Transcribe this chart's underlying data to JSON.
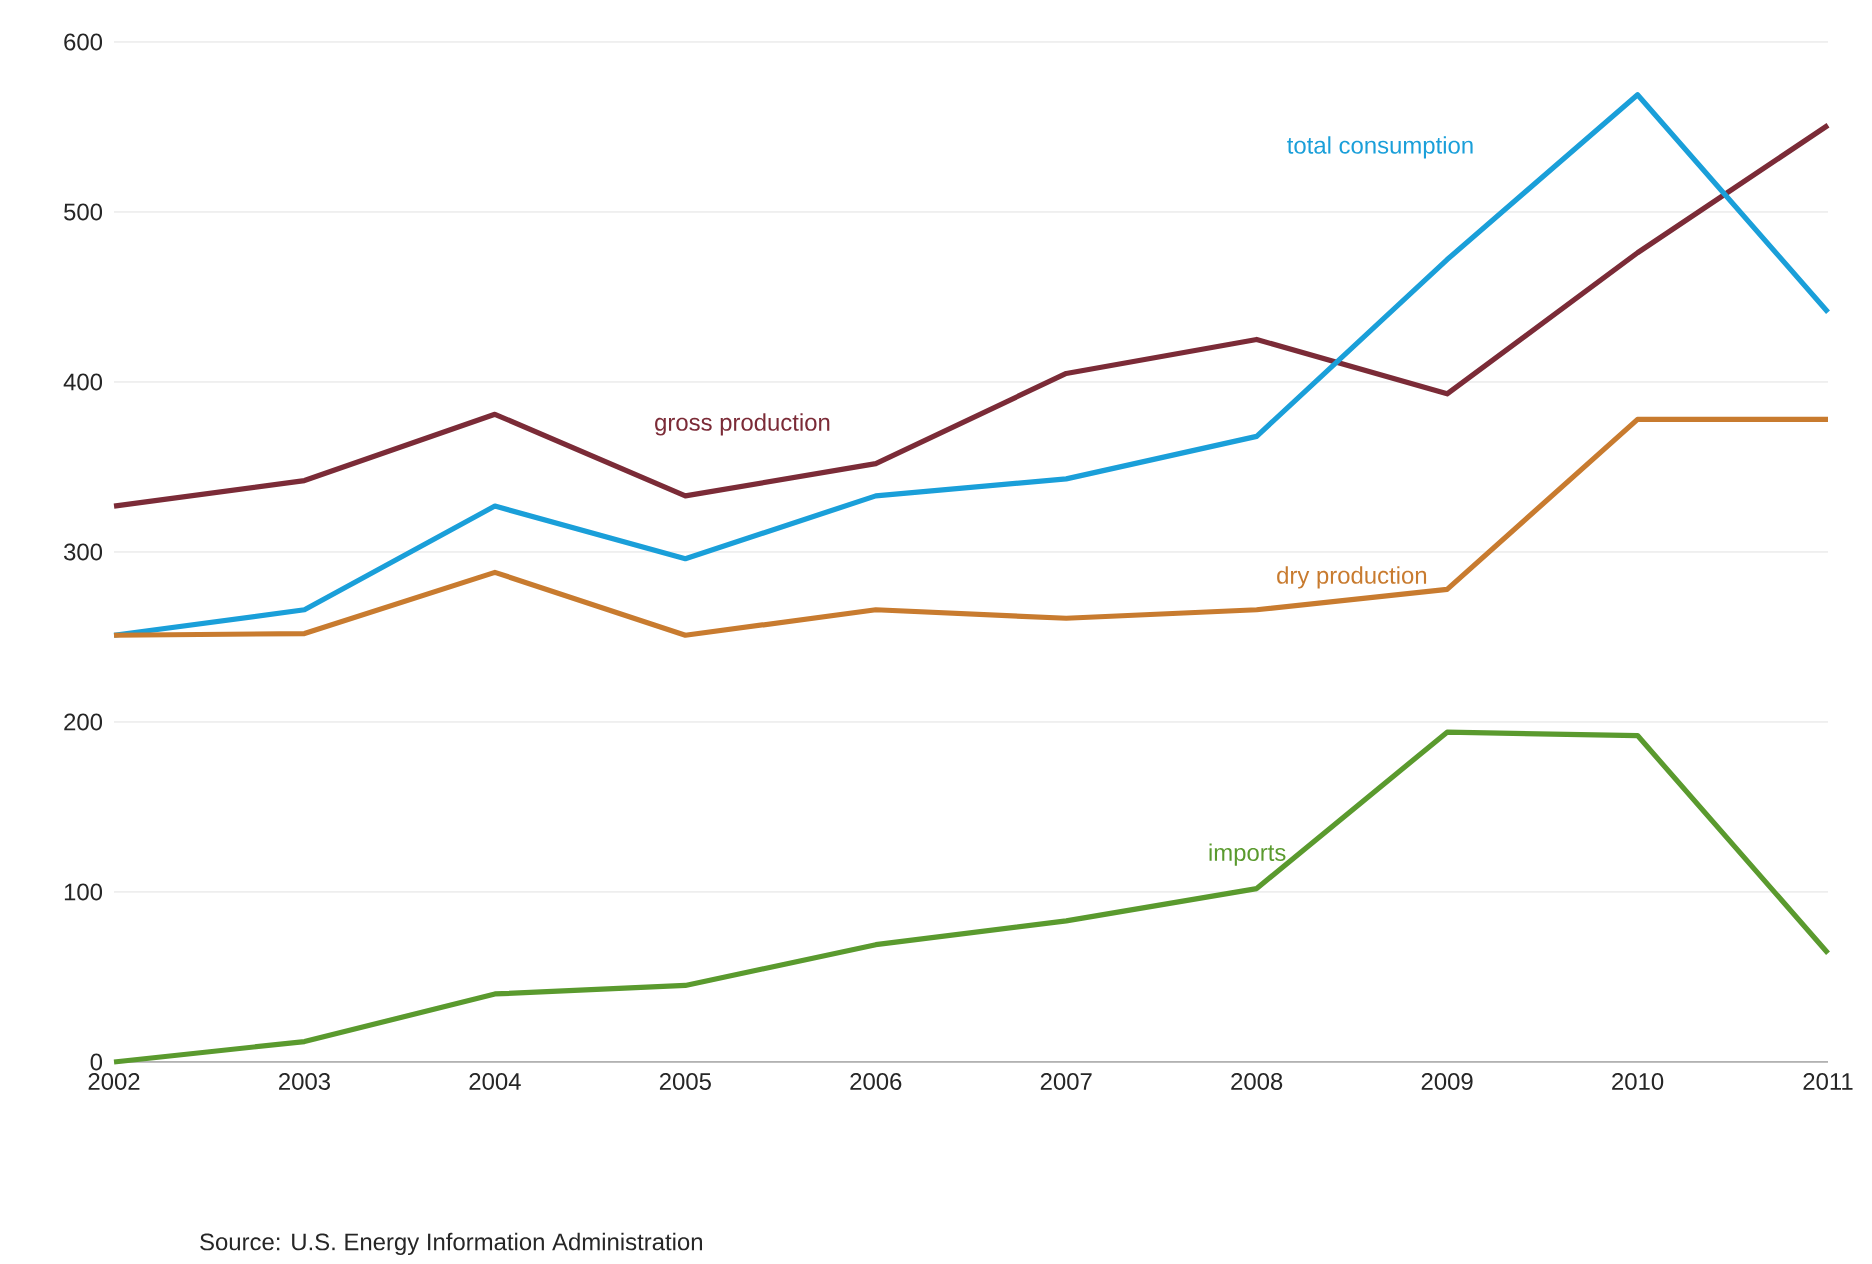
{
  "chart_data": {
    "type": "line",
    "x": [
      2002,
      2003,
      2004,
      2005,
      2006,
      2007,
      2008,
      2009,
      2010,
      2011
    ],
    "xlim": [
      2002,
      2011
    ],
    "ylim": [
      0,
      600
    ],
    "xticks": [
      2002,
      2003,
      2004,
      2005,
      2006,
      2007,
      2008,
      2009,
      2010,
      2011
    ],
    "yticks": [
      0,
      100,
      200,
      300,
      400,
      500,
      600
    ],
    "grid": "y",
    "series": [
      {
        "name": "gross production",
        "color": "#7b2b37",
        "values": [
          327,
          342,
          381,
          333,
          352,
          405,
          425,
          393,
          476,
          551
        ]
      },
      {
        "name": "total consumption",
        "color": "#1a9fd9",
        "values": [
          251,
          266,
          327,
          296,
          333,
          343,
          368,
          472,
          569,
          441
        ]
      },
      {
        "name": "dry production",
        "color": "#c87b2f",
        "values": [
          251,
          252,
          288,
          251,
          266,
          261,
          266,
          278,
          378,
          378
        ]
      },
      {
        "name": "imports",
        "color": "#5a9a2e",
        "values": [
          0,
          12,
          40,
          45,
          69,
          83,
          102,
          194,
          192,
          64
        ]
      }
    ],
    "annotations": [
      "Source:  U.S. Energy Information  Administration"
    ]
  }
}
